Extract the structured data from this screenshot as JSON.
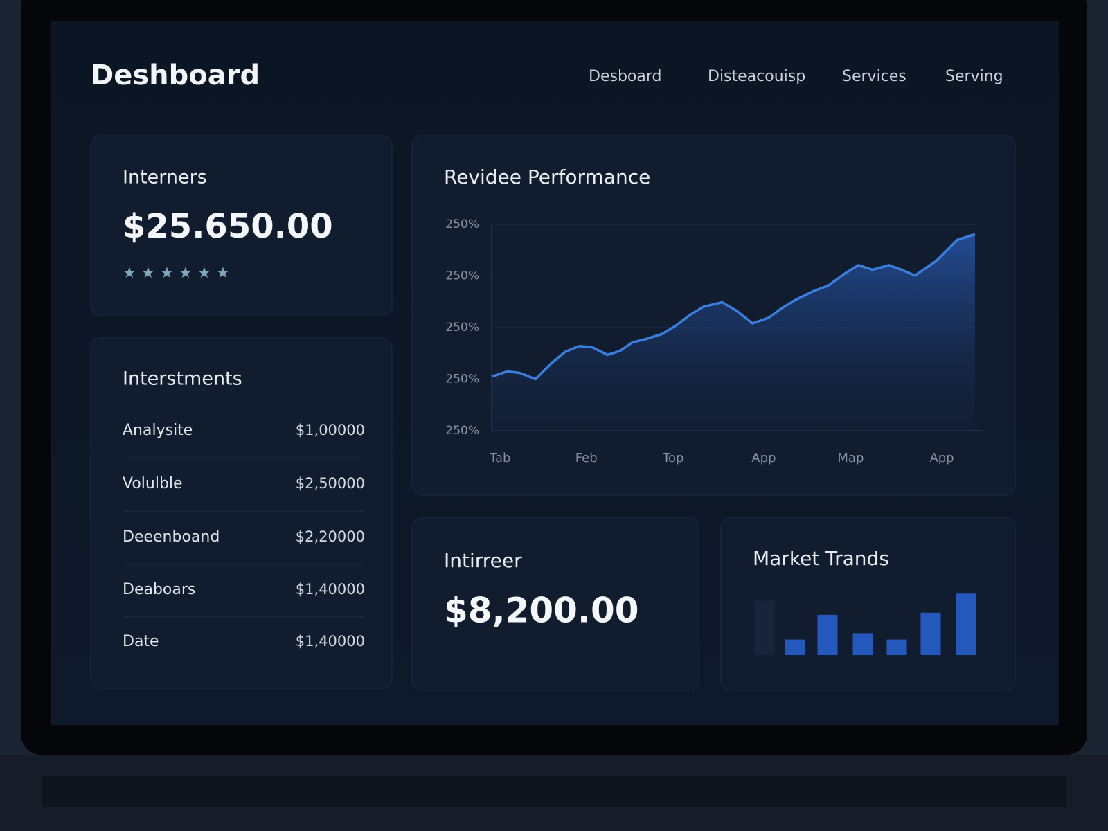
{
  "header": {
    "title": "Deshboard",
    "nav": [
      "Desboard",
      "Disteacouisp",
      "Services",
      "Serving"
    ]
  },
  "summary_card": {
    "title": "Interners",
    "value": "$25.650.00"
  },
  "investments": {
    "title": "Interstments",
    "rows": [
      [
        "Analysite",
        "$1,00000"
      ],
      [
        "Volulble",
        "$2,50000"
      ],
      [
        "Deeenboand",
        "$2,20000"
      ],
      [
        "Deaboars",
        "$1,40000"
      ],
      [
        "Date",
        "$1,40000"
      ]
    ]
  },
  "revenue_chart": {
    "type": "line",
    "title": "Revidee Performance",
    "color": "#3a7fe0",
    "grid": true,
    "x": [
      0,
      22,
      40,
      62,
      84,
      104,
      124,
      142,
      164,
      182,
      199,
      219,
      242,
      262,
      279,
      299,
      326,
      346,
      369,
      392,
      409,
      429,
      454,
      476,
      499,
      519,
      539,
      562,
      582,
      599,
      629,
      659,
      684
    ],
    "values": [
      1.05,
      1.15,
      1.12,
      1.0,
      1.3,
      1.53,
      1.64,
      1.62,
      1.47,
      1.55,
      1.71,
      1.78,
      1.88,
      2.05,
      2.23,
      2.4,
      2.49,
      2.33,
      2.08,
      2.19,
      2.36,
      2.53,
      2.7,
      2.81,
      3.04,
      3.21,
      3.12,
      3.21,
      3.11,
      3.01,
      3.29,
      3.7,
      3.81
    ],
    "xlim": [
      0,
      684
    ],
    "xticks": [
      {
        "value": 12,
        "label": "Tab"
      },
      {
        "value": 134,
        "label": "Feb"
      },
      {
        "value": 257,
        "label": "Top"
      },
      {
        "value": 385,
        "label": "App"
      },
      {
        "value": 508,
        "label": "Map"
      },
      {
        "value": 637,
        "label": "App"
      }
    ],
    "ylim": [
      0,
      4
    ],
    "yticks": [
      {
        "value": 0,
        "label": "250%"
      },
      {
        "value": 1,
        "label": "250%"
      },
      {
        "value": 2,
        "label": "250%"
      },
      {
        "value": 3,
        "label": "250%"
      },
      {
        "value": 4,
        "label": "250%"
      }
    ]
  },
  "income_card": {
    "title": "Intirreer",
    "value": "$8,200.00"
  },
  "market_chart": {
    "type": "bar",
    "title": "Market Trands",
    "values": [
      77,
      22,
      57,
      31,
      22,
      60,
      87
    ],
    "colors": [
      "#17243b",
      "#2558bd",
      "#2558bd",
      "#2558bd",
      "#2558bd",
      "#2558bd",
      "#2558bd"
    ],
    "ylim": [
      0,
      100
    ]
  }
}
